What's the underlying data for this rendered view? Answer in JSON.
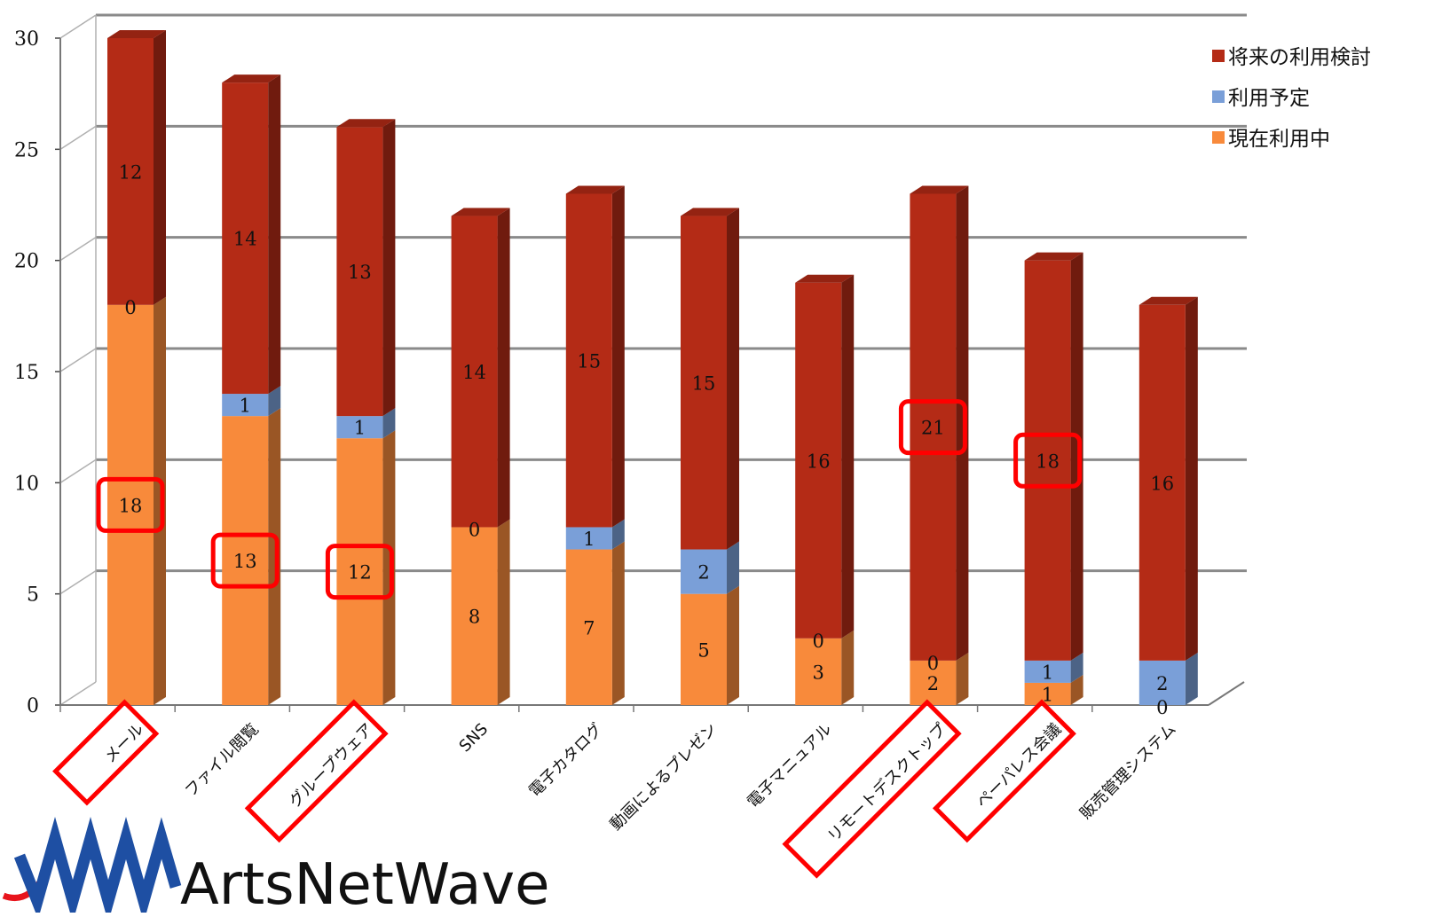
{
  "chart_data": {
    "type": "bar",
    "stacked": true,
    "three_d": true,
    "categories": [
      "メール",
      "ファイル閲覧",
      "グループウェア",
      "SNS",
      "電子カタログ",
      "動画によるプレゼン",
      "電子マニュアル",
      "リモートデスクトップ",
      "ペーパレス会議",
      "販売管理システム"
    ],
    "series": [
      {
        "name": "現在利用中",
        "color": "#f88a3b",
        "values": [
          18,
          13,
          12,
          8,
          7,
          5,
          3,
          2,
          1,
          0
        ]
      },
      {
        "name": "利用予定",
        "color": "#7a9fd8",
        "values": [
          0,
          1,
          1,
          0,
          1,
          2,
          0,
          0,
          1,
          2
        ]
      },
      {
        "name": "将来の利用検討",
        "color": "#b42b16",
        "values": [
          12,
          14,
          13,
          14,
          15,
          15,
          16,
          21,
          18,
          16
        ]
      }
    ],
    "ylim": [
      0,
      30
    ],
    "yticks": [
      0,
      5,
      10,
      15,
      20,
      25,
      30
    ],
    "grid": true,
    "legend": "top-right",
    "highlighted_labels": [
      {
        "category": 0,
        "series": 0
      },
      {
        "category": 1,
        "series": 0
      },
      {
        "category": 2,
        "series": 0
      },
      {
        "category": 7,
        "series": 2
      },
      {
        "category": 8,
        "series": 2
      }
    ],
    "highlighted_categories": [
      0,
      2,
      7,
      8
    ]
  },
  "logo": {
    "text_parts": [
      "Arts",
      "Net",
      "Wave"
    ],
    "accent": "#e8141c"
  }
}
